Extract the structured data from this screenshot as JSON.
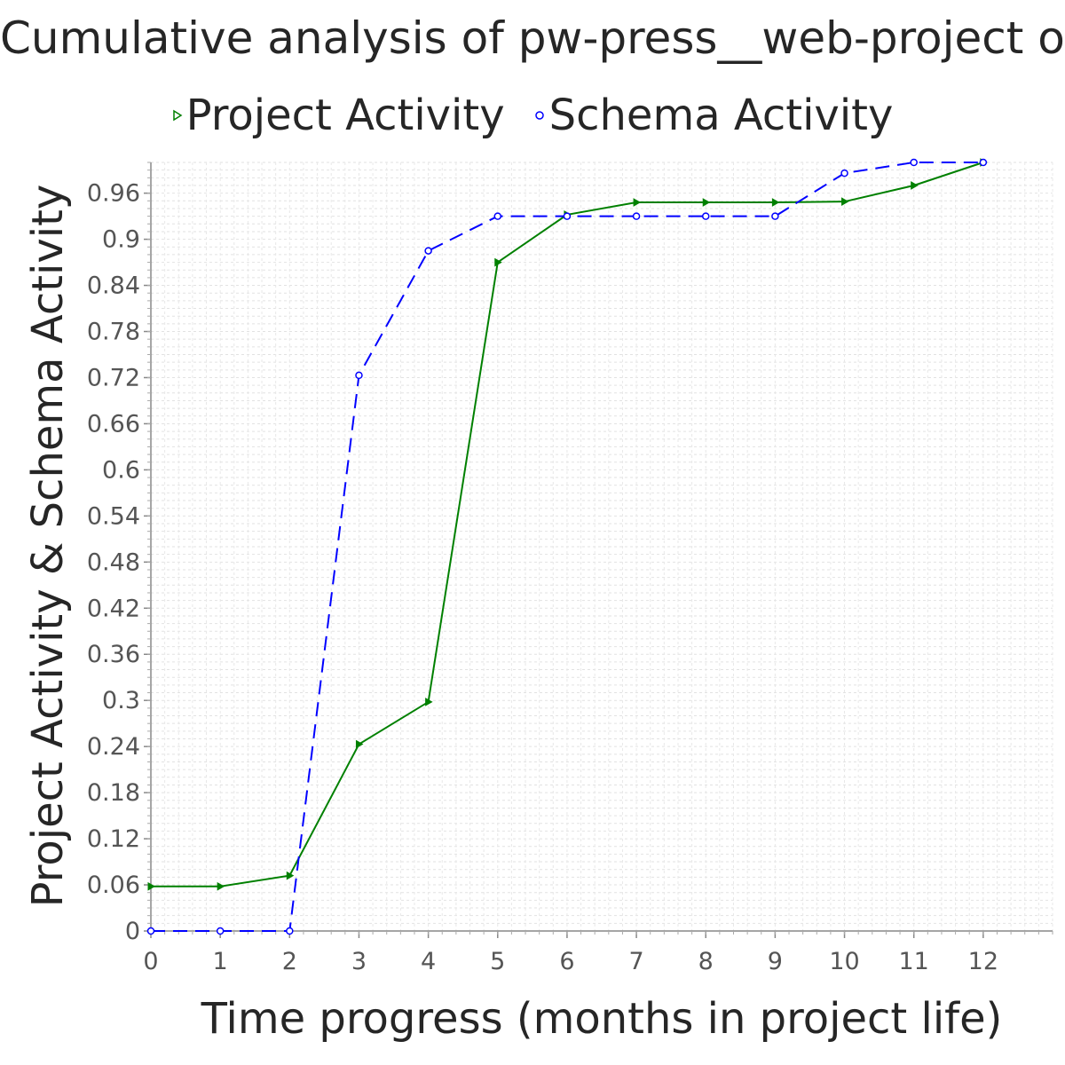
{
  "chart_data": {
    "type": "line",
    "title": "Cumulative analysis of pw-press__web-project ov...",
    "xlabel": "Time progress (months in project life)",
    "ylabel": "Project Activity & Schema Activity",
    "xlim": [
      0,
      13
    ],
    "ylim": [
      0,
      1.0
    ],
    "x_ticks": [
      "0",
      "1",
      "2",
      "3",
      "4",
      "5",
      "6",
      "7",
      "8",
      "9",
      "10",
      "11",
      "12"
    ],
    "y_ticks": [
      "0",
      "0.06",
      "0.12",
      "0.18",
      "0.24",
      "0.3",
      "0.36",
      "0.42",
      "0.48",
      "0.54",
      "0.6",
      "0.66",
      "0.72",
      "0.78",
      "0.84",
      "0.9",
      "0.96"
    ],
    "grid": true,
    "legend_position": "top",
    "x": [
      0,
      1,
      2,
      3,
      4,
      5,
      6,
      7,
      8,
      9,
      10,
      11,
      12
    ],
    "series": [
      {
        "name": "Project Activity",
        "color": "#008000",
        "line_style": "solid",
        "marker": "triangle-right",
        "values": [
          0.058,
          0.058,
          0.072,
          0.243,
          0.298,
          0.87,
          0.932,
          0.948,
          0.948,
          0.948,
          0.949,
          0.97,
          1.0
        ]
      },
      {
        "name": "Schema Activity",
        "color": "#0000ff",
        "line_style": "dashed",
        "marker": "circle",
        "values": [
          0.0,
          0.0,
          0.0,
          0.723,
          0.885,
          0.93,
          0.93,
          0.93,
          0.93,
          0.93,
          0.986,
          1.0,
          1.0
        ]
      }
    ]
  }
}
